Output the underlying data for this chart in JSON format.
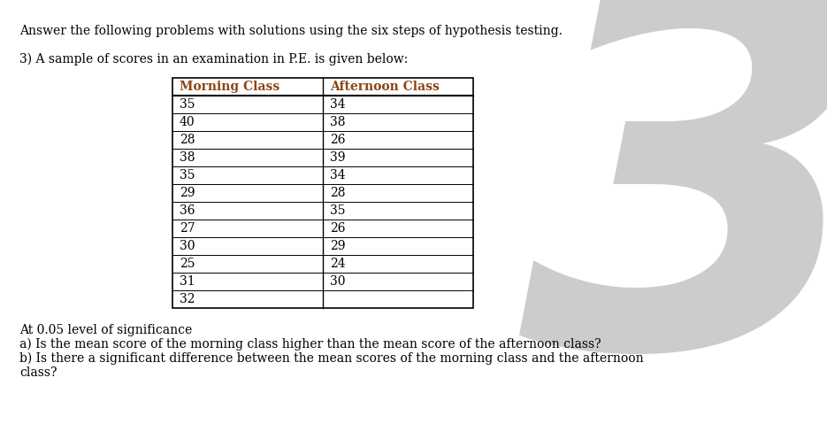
{
  "title_line1": "Answer the following problems with solutions using the six steps of hypothesis testing.",
  "title_line2": "3) A sample of scores in an examination in P.E. is given below:",
  "col1_header": "Morning Class",
  "col2_header": "Afternoon Class",
  "morning_scores": [
    35,
    40,
    28,
    38,
    35,
    29,
    36,
    27,
    30,
    25,
    31,
    32
  ],
  "afternoon_scores": [
    34,
    38,
    26,
    39,
    34,
    28,
    35,
    26,
    29,
    24,
    30,
    ""
  ],
  "footer_line1": "At 0.05 level of significance",
  "footer_line2": "a) Is the mean score of the morning class higher than the mean score of the afternoon class?",
  "footer_line3": "b) Is there a significant difference between the mean scores of the morning class and the afternoon",
  "footer_line4": "class?",
  "bg_color": "#ffffff",
  "text_color": "#000000",
  "header_text_color": "#8B4513",
  "table_border_color": "#000000",
  "watermark_color": "#aaaaaa",
  "watermark_text": "3",
  "font_size_body": 10.0,
  "font_size_header": 10.0,
  "font_size_watermark": 420
}
